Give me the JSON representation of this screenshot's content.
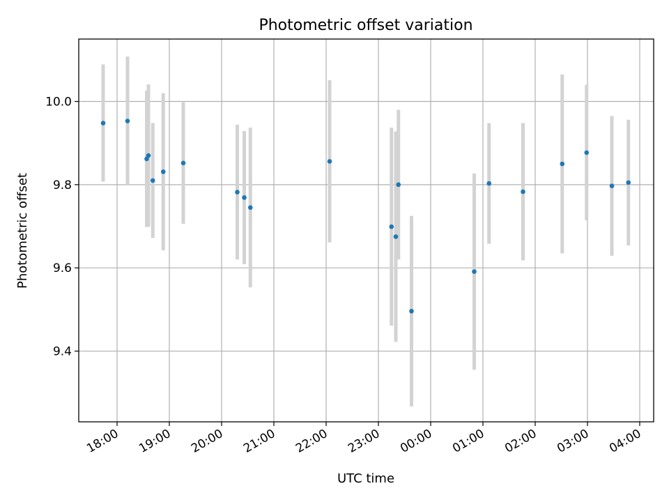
{
  "chart_data": {
    "type": "scatter",
    "title": "Photometric offset variation",
    "xlabel": "UTC time",
    "ylabel": "Photometric offset",
    "x_ticks": [
      "18:00",
      "19:00",
      "20:00",
      "21:00",
      "22:00",
      "23:00",
      "00:00",
      "01:00",
      "02:00",
      "03:00",
      "04:00"
    ],
    "x_tick_hours": [
      18,
      19,
      20,
      21,
      22,
      23,
      24,
      25,
      26,
      27,
      28
    ],
    "y_ticks": [
      "9.4",
      "9.6",
      "9.8",
      "10.0"
    ],
    "y_tick_values": [
      9.4,
      9.6,
      9.8,
      10.0
    ],
    "xlim": [
      "17:16",
      "04:16"
    ],
    "ylim": [
      9.23,
      10.15
    ],
    "grid": true,
    "errorbar_color": "#d3d3d3",
    "point_color": "#1f77b4",
    "series": [
      {
        "points": [
          {
            "x": "17:44",
            "y": 9.948,
            "err": 0.141
          },
          {
            "x": "18:12",
            "y": 9.953,
            "err": 0.155
          },
          {
            "x": "18:34",
            "y": 9.862,
            "err": 0.164
          },
          {
            "x": "18:36",
            "y": 9.87,
            "err": 0.171
          },
          {
            "x": "18:41",
            "y": 9.81,
            "err": 0.138
          },
          {
            "x": "18:53",
            "y": 9.831,
            "err": 0.189
          },
          {
            "x": "19:16",
            "y": 9.852,
            "err": 0.146
          },
          {
            "x": "20:18",
            "y": 9.782,
            "err": 0.162
          },
          {
            "x": "20:26",
            "y": 9.769,
            "err": 0.16
          },
          {
            "x": "20:33",
            "y": 9.745,
            "err": 0.192
          },
          {
            "x": "22:04",
            "y": 9.856,
            "err": 0.195
          },
          {
            "x": "23:15",
            "y": 9.699,
            "err": 0.238
          },
          {
            "x": "23:20",
            "y": 9.675,
            "err": 0.253
          },
          {
            "x": "23:23",
            "y": 9.8,
            "err": 0.18
          },
          {
            "x": "23:38",
            "y": 9.496,
            "err": 0.229
          },
          {
            "x": "00:50",
            "y": 9.591,
            "err": 0.236
          },
          {
            "x": "01:07",
            "y": 9.803,
            "err": 0.145
          },
          {
            "x": "01:46",
            "y": 9.783,
            "err": 0.165
          },
          {
            "x": "02:31",
            "y": 9.85,
            "err": 0.215
          },
          {
            "x": "02:59",
            "y": 9.877,
            "err": 0.163
          },
          {
            "x": "03:28",
            "y": 9.797,
            "err": 0.168
          },
          {
            "x": "03:47",
            "y": 9.805,
            "err": 0.151
          }
        ]
      }
    ]
  }
}
